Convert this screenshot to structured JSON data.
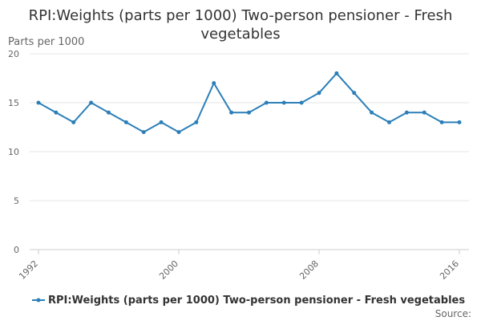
{
  "chart_data": {
    "type": "line",
    "title": "RPI:Weights (parts per 1000) Two-person pensioner - Fresh vegetables",
    "ylabel": "Parts per 1000",
    "xlabel": "",
    "x": [
      1992,
      1993,
      1994,
      1995,
      1996,
      1997,
      1998,
      1999,
      2000,
      2001,
      2002,
      2003,
      2004,
      2005,
      2006,
      2007,
      2008,
      2009,
      2010,
      2011,
      2012,
      2013,
      2014,
      2015,
      2016
    ],
    "series": [
      {
        "name": "RPI:Weights (parts per 1000) Two-person pensioner - Fresh vegetables",
        "values": [
          15,
          14,
          13,
          15,
          14,
          13,
          12,
          13,
          12,
          13,
          17,
          14,
          14,
          15,
          15,
          15,
          16,
          18,
          16,
          14,
          13,
          14,
          14,
          13,
          13
        ],
        "color": "#2b7fb8"
      }
    ],
    "xticks": [
      "1992",
      "2000",
      "2008",
      "2016"
    ],
    "yticks": [
      "0",
      "5",
      "10",
      "15",
      "20"
    ],
    "ylim": [
      0,
      20
    ],
    "grid": true,
    "legend": "bottom"
  },
  "source_label": "Source:"
}
